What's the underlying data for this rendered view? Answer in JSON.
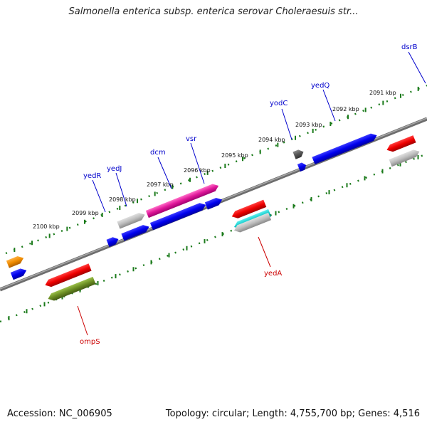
{
  "title": "Salmonella enterica subsp. enterica serovar Choleraesuis str...",
  "footer": {
    "accession": "Accession: NC_006905",
    "summary": "Topology: circular; Length: 4,755,700 bp; Genes: 4,516"
  },
  "scale_labels": [
    "2091 kbp",
    "2092 kbp",
    "2093 kbp",
    "2094 kbp",
    "2095 kbp",
    "2096 kbp",
    "2097 kbp",
    "2098 kbp",
    "2099 kbp",
    "2100 kbp"
  ],
  "gene_labels_top": [
    "dsrB",
    "yedQ",
    "yodC",
    "vsr",
    "dcm",
    "yedJ",
    "yedR"
  ],
  "gene_labels_bottom": [
    "yedA",
    "ompS"
  ],
  "colors": {
    "forward_label": "#0000cc",
    "reverse_label": "#cc0000",
    "backbone": "#808080",
    "ticks": "#1a7a1a"
  }
}
